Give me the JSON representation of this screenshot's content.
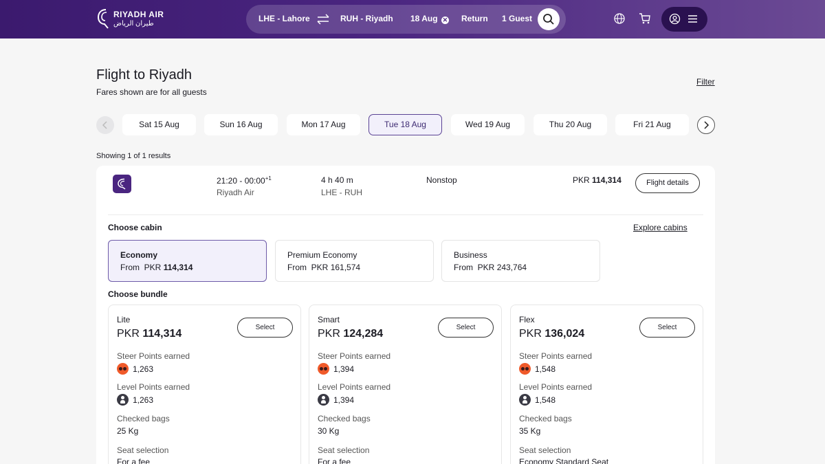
{
  "header": {
    "brand_en": "RIYADH AIR",
    "brand_ar": "طيران الرياض",
    "origin": "LHE - Lahore",
    "destination": "RUH - Riyadh",
    "date": "18 Aug",
    "trip_type": "Return",
    "guests": "1 Guest",
    "icons": [
      "swap-icon",
      "clear-icon",
      "search-icon",
      "globe-icon",
      "cart-icon",
      "user-icon",
      "menu-icon"
    ]
  },
  "page": {
    "title": "Flight to Riyadh",
    "subtitle": "Fares shown are for all guests",
    "filter_label": "Filter",
    "results_count": "Showing 1 of 1 results"
  },
  "dates": [
    {
      "label": "Sat 15 Aug",
      "active": false
    },
    {
      "label": "Sun 16 Aug",
      "active": false
    },
    {
      "label": "Mon 17 Aug",
      "active": false
    },
    {
      "label": "Tue 18 Aug",
      "active": true
    },
    {
      "label": "Wed 19 Aug",
      "active": false
    },
    {
      "label": "Thu 20 Aug",
      "active": false
    },
    {
      "label": "Fri 21 Aug",
      "active": false
    }
  ],
  "flight": {
    "times": "21:20 - 00:00",
    "day_offset": "+1",
    "airline": "Riyadh Air",
    "duration": "4 h 40 m",
    "route": "LHE - RUH",
    "stops": "Nonstop",
    "price_currency": "PKR",
    "price_amount": "114,314",
    "details_label": "Flight details"
  },
  "cabins": {
    "heading": "Choose cabin",
    "explore_label": "Explore cabins",
    "from_label": "From",
    "items": [
      {
        "name": "Economy",
        "currency": "PKR",
        "amount": "114,314",
        "selected": true
      },
      {
        "name": "Premium Economy",
        "currency": "PKR",
        "amount": "161,574",
        "selected": false
      },
      {
        "name": "Business",
        "currency": "PKR",
        "amount": "243,764",
        "selected": false
      }
    ]
  },
  "bundles": {
    "heading": "Choose bundle",
    "select_label": "Select",
    "labels": {
      "steer": "Steer Points earned",
      "level": "Level Points earned",
      "bags": "Checked bags",
      "seat": "Seat selection"
    },
    "items": [
      {
        "name": "Lite",
        "currency": "PKR",
        "amount": "114,314",
        "steer": "1,263",
        "level": "1,263",
        "bags": "25 Kg",
        "seat": "For a fee"
      },
      {
        "name": "Smart",
        "currency": "PKR",
        "amount": "124,284",
        "steer": "1,394",
        "level": "1,394",
        "bags": "30 Kg",
        "seat": "For a fee"
      },
      {
        "name": "Flex",
        "currency": "PKR",
        "amount": "136,024",
        "steer": "1,548",
        "level": "1,548",
        "bags": "35 Kg",
        "seat": "Economy Standard Seat"
      }
    ]
  },
  "colors": {
    "brand_purple": "#3b1a6e",
    "accent_lavender": "#f2f0fb",
    "steer_orange": "#f05a2a"
  }
}
